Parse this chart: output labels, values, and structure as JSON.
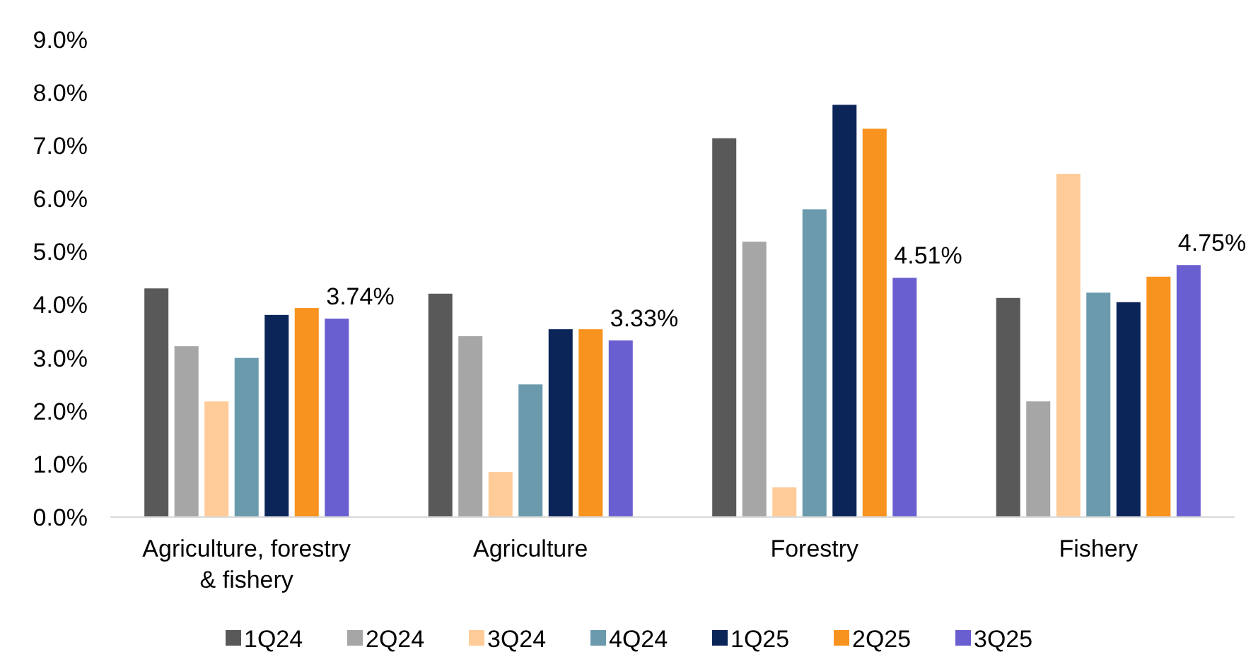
{
  "chart_data": {
    "type": "bar",
    "categories": [
      "Agriculture, forestry & fishery",
      "Agriculture",
      "Forestry",
      "Fishery"
    ],
    "series": [
      {
        "name": "1Q24",
        "color": "#595959",
        "values": [
          4.31,
          4.21,
          7.14,
          4.13
        ]
      },
      {
        "name": "2Q24",
        "color": "#a6a6a6",
        "values": [
          3.22,
          3.41,
          5.19,
          2.18
        ]
      },
      {
        "name": "3Q24",
        "color": "#ffcc99",
        "values": [
          2.18,
          0.85,
          0.56,
          6.47
        ]
      },
      {
        "name": "4Q24",
        "color": "#6b9aad",
        "values": [
          3.0,
          2.5,
          5.8,
          4.23
        ]
      },
      {
        "name": "1Q25",
        "color": "#0b2559",
        "values": [
          3.81,
          3.54,
          7.77,
          4.05
        ]
      },
      {
        "name": "2Q25",
        "color": "#f7931e",
        "values": [
          3.94,
          3.54,
          7.32,
          4.53
        ]
      },
      {
        "name": "3Q25",
        "color": "#6a5fd0",
        "values": [
          3.74,
          3.33,
          4.51,
          4.75
        ],
        "value_labels": [
          "3.74%",
          "3.33%",
          "4.51%",
          "4.75%"
        ]
      }
    ],
    "ylim": [
      0,
      9
    ],
    "yticks": [
      {
        "value": 0,
        "label": "0.0%"
      },
      {
        "value": 1,
        "label": "1.0%"
      },
      {
        "value": 2,
        "label": "2.0%"
      },
      {
        "value": 3,
        "label": "3.0%"
      },
      {
        "value": 4,
        "label": "4.0%"
      },
      {
        "value": 5,
        "label": "5.0%"
      },
      {
        "value": 6,
        "label": "6.0%"
      },
      {
        "value": 7,
        "label": "7.0%"
      },
      {
        "value": 8,
        "label": "8.0%"
      },
      {
        "value": 9,
        "label": "9.0%"
      }
    ],
    "grid": false,
    "legend": "bottom"
  }
}
